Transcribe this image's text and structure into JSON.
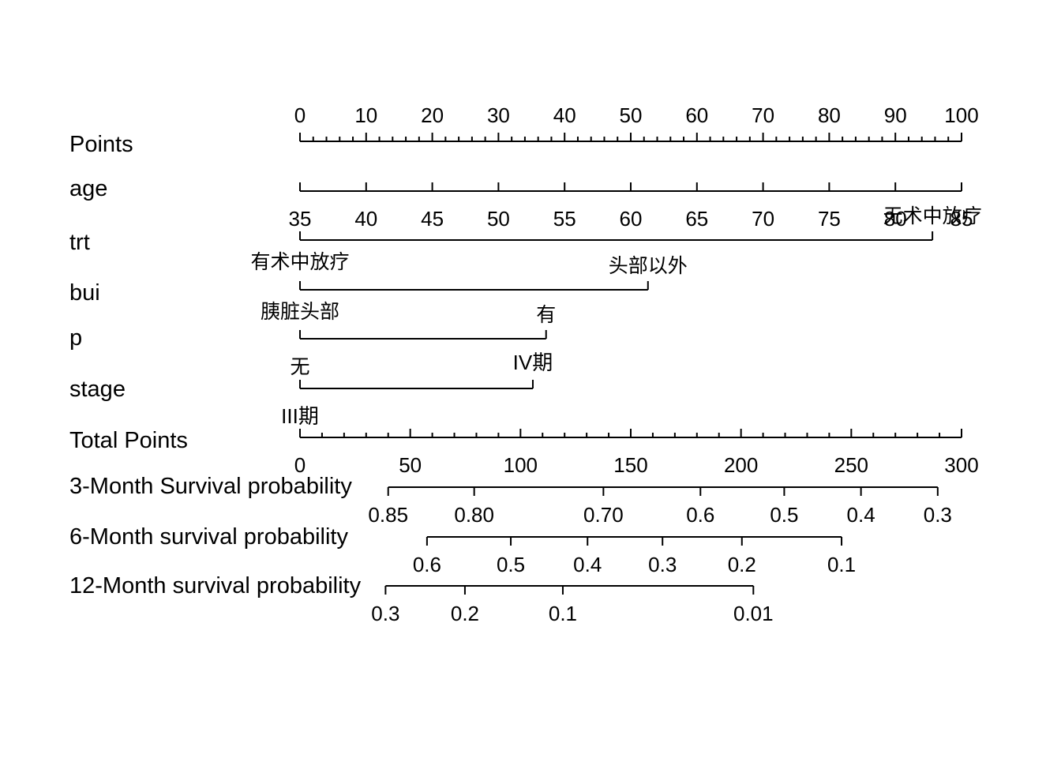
{
  "chart_data": {
    "type": "nomogram",
    "rows": [
      {
        "name": "Points",
        "kind": "scale",
        "min": 0,
        "max": 100,
        "labeled_ticks": [
          0,
          10,
          20,
          30,
          40,
          50,
          60,
          70,
          80,
          90,
          100
        ],
        "minor_step": 2,
        "tick_labels_above": true
      },
      {
        "name": "age",
        "kind": "scale",
        "min": 35,
        "max": 85,
        "labeled_ticks": [
          35,
          40,
          45,
          50,
          55,
          60,
          65,
          70,
          75,
          80,
          85
        ],
        "points_at_min": 0,
        "points_at_max": 100
      },
      {
        "name": "trt",
        "kind": "categorical",
        "levels": [
          {
            "label": "有术中放疗",
            "points": 0
          },
          {
            "label": "无术中放疗",
            "points": 95.6
          }
        ]
      },
      {
        "name": "bui",
        "kind": "categorical",
        "levels": [
          {
            "label": "胰脏头部",
            "points": 0
          },
          {
            "label": "头部以外",
            "points": 52.6
          }
        ]
      },
      {
        "name": "p",
        "kind": "categorical",
        "levels": [
          {
            "label": "无",
            "points": 0
          },
          {
            "label": "有",
            "points": 37.2
          }
        ]
      },
      {
        "name": "stage",
        "kind": "categorical",
        "levels": [
          {
            "label": "III期",
            "points": 0
          },
          {
            "label": "IV期",
            "points": 35.2
          }
        ]
      },
      {
        "name": "Total Points",
        "kind": "scale",
        "min": 0,
        "max": 300,
        "labeled_ticks": [
          0,
          50,
          100,
          150,
          200,
          250,
          300
        ],
        "minor_step": 10
      },
      {
        "name": "3-Month Survival probability",
        "kind": "probability",
        "ticks": [
          {
            "label": "0.85",
            "total_points": 40
          },
          {
            "label": "0.80",
            "total_points": 79
          },
          {
            "label": "0.70",
            "total_points": 137.6
          },
          {
            "label": "0.6",
            "total_points": 181.6
          },
          {
            "label": "0.5",
            "total_points": 219.6
          },
          {
            "label": "0.4",
            "total_points": 254.4
          },
          {
            "label": "0.3",
            "total_points": 289.2
          }
        ]
      },
      {
        "name": "6-Month survival probability",
        "kind": "probability",
        "ticks": [
          {
            "label": "0.6",
            "total_points": 57.6
          },
          {
            "label": "0.5",
            "total_points": 95.6
          },
          {
            "label": "0.4",
            "total_points": 130.4
          },
          {
            "label": "0.3",
            "total_points": 164.4
          },
          {
            "label": "0.2",
            "total_points": 200.4
          },
          {
            "label": "0.1",
            "total_points": 245.6
          }
        ]
      },
      {
        "name": "12-Month survival probability",
        "kind": "probability",
        "ticks": [
          {
            "label": "0.3",
            "total_points": 38.8
          },
          {
            "label": "0.2",
            "total_points": 74.8
          },
          {
            "label": "0.1",
            "total_points": 119.2
          },
          {
            "label": "0.01",
            "total_points": 205.6
          }
        ]
      }
    ]
  }
}
